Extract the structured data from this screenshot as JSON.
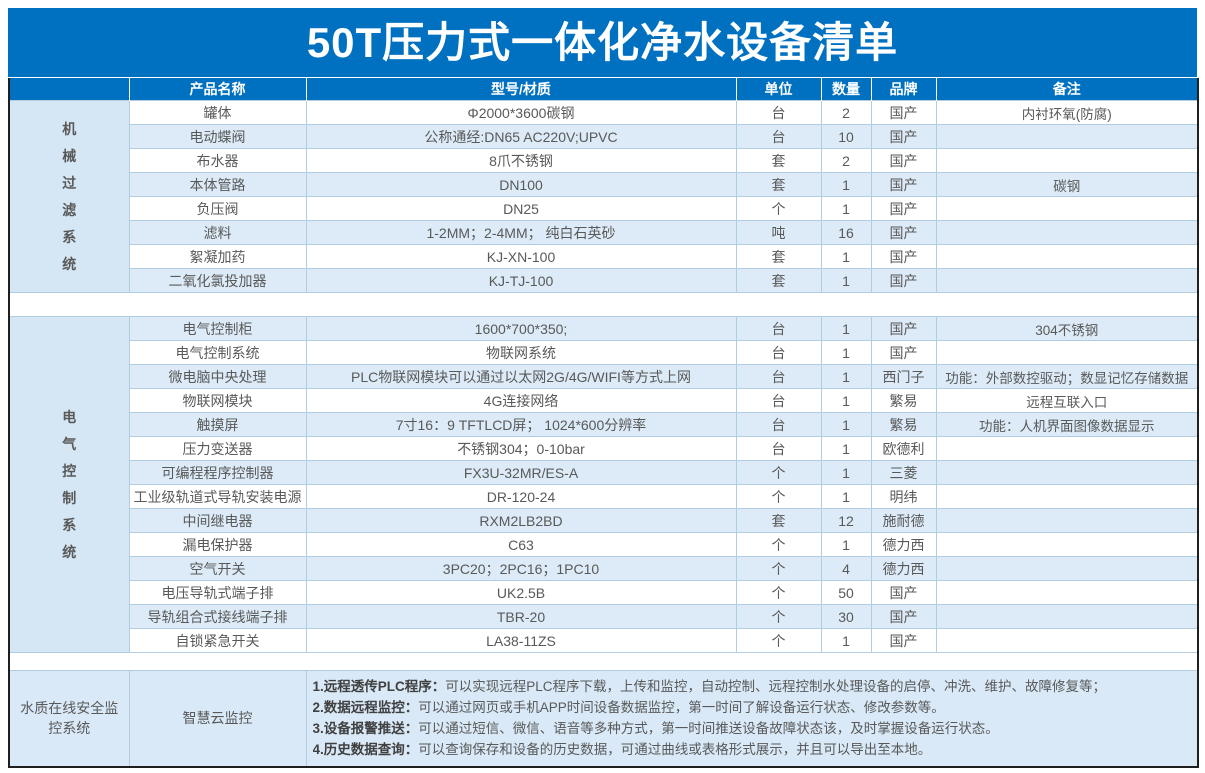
{
  "title": "50T压力式一体化净水设备清单",
  "colors": {
    "header_blue": "#0070C0",
    "row_alt_blue": "#DCEBF7",
    "category_bg": "#D5E6F4",
    "monitor_bg": "#D9E9F7",
    "text_gray": "#595959",
    "outer_border": "#1F1F1F"
  },
  "table": {
    "headers": [
      "产品名称",
      "型号/材质",
      "单位",
      "数量",
      "品牌",
      "备注"
    ],
    "sections": [
      {
        "category": "机械过滤系统",
        "rows": [
          {
            "name": "罐体",
            "model": "Φ2000*3600碳钢",
            "unit": "台",
            "qty": "2",
            "brand": "国产",
            "note": "内衬环氧(防腐)"
          },
          {
            "name": "电动蝶阀",
            "model": "公称通经:DN65 AC220V;UPVC",
            "unit": "台",
            "qty": "10",
            "brand": "国产",
            "note": ""
          },
          {
            "name": "布水器",
            "model": "8爪不锈钢",
            "unit": "套",
            "qty": "2",
            "brand": "国产",
            "note": ""
          },
          {
            "name": "本体管路",
            "model": "DN100",
            "unit": "套",
            "qty": "1",
            "brand": "国产",
            "note": "碳钢"
          },
          {
            "name": "负压阀",
            "model": "DN25",
            "unit": "个",
            "qty": "1",
            "brand": "国产",
            "note": ""
          },
          {
            "name": "滤料",
            "model": "1-2MM；2-4MM； 纯白石英砂",
            "unit": "吨",
            "qty": "16",
            "brand": "国产",
            "note": ""
          },
          {
            "name": "絮凝加药",
            "model": "KJ-XN-100",
            "unit": "套",
            "qty": "1",
            "brand": "国产",
            "note": ""
          },
          {
            "name": "二氧化氯投加器",
            "model": "KJ-TJ-100",
            "unit": "套",
            "qty": "1",
            "brand": "国产",
            "note": ""
          }
        ]
      },
      {
        "category": "电气控制系统",
        "rows": [
          {
            "name": "电气控制柜",
            "model": "1600*700*350;",
            "unit": "台",
            "qty": "1",
            "brand": "国产",
            "note": "304不锈钢"
          },
          {
            "name": "电气控制系统",
            "model": "物联网系统",
            "unit": "台",
            "qty": "1",
            "brand": "国产",
            "note": ""
          },
          {
            "name": "微电脑中央处理",
            "model": "PLC物联网模块可以通过以太网2G/4G/WIFI等方式上网",
            "unit": "台",
            "qty": "1",
            "brand": "西门子",
            "note": "功能：外部数控驱动；数显记忆存储数据"
          },
          {
            "name": "物联网模块",
            "model": "4G连接网络",
            "unit": "台",
            "qty": "1",
            "brand": "繁易",
            "note": "远程互联入口"
          },
          {
            "name": "触摸屏",
            "model": "7寸16：9 TFTLCD屏； 1024*600分辨率",
            "unit": "台",
            "qty": "1",
            "brand": "繁易",
            "note": "功能：人机界面图像数据显示"
          },
          {
            "name": "压力变送器",
            "model": "不锈钢304；0-10bar",
            "unit": "台",
            "qty": "1",
            "brand": "欧德利",
            "note": ""
          },
          {
            "name": "可编程程序控制器",
            "model": "FX3U-32MR/ES-A",
            "unit": "个",
            "qty": "1",
            "brand": "三菱",
            "note": ""
          },
          {
            "name": "工业级轨道式导轨安装电源",
            "model": "DR-120-24",
            "unit": "个",
            "qty": "1",
            "brand": "明纬",
            "note": ""
          },
          {
            "name": "中间继电器",
            "model": "RXM2LB2BD",
            "unit": "套",
            "qty": "12",
            "brand": "施耐德",
            "note": ""
          },
          {
            "name": "漏电保护器",
            "model": "C63",
            "unit": "个",
            "qty": "1",
            "brand": "德力西",
            "note": ""
          },
          {
            "name": "空气开关",
            "model": "3PC20；2PC16；1PC10",
            "unit": "个",
            "qty": "4",
            "brand": "德力西",
            "note": ""
          },
          {
            "name": "电压导轨式端子排",
            "model": "UK2.5B",
            "unit": "个",
            "qty": "50",
            "brand": "国产",
            "note": ""
          },
          {
            "name": "导轨组合式接线端子排",
            "model": "TBR-20",
            "unit": "个",
            "qty": "30",
            "brand": "国产",
            "note": ""
          },
          {
            "name": "自锁紧急开关",
            "model": "LA38-11ZS",
            "unit": "个",
            "qty": "1",
            "brand": "国产",
            "note": ""
          }
        ]
      }
    ],
    "monitor": {
      "category": "水质在线安全监控系统",
      "product": "智慧云监控",
      "features": [
        {
          "label": "1.远程透传PLC程序：",
          "text": "可以实现远程PLC程序下载，上传和监控，自动控制、远程控制水处理设备的启停、冲洗、维护、故障修复等；"
        },
        {
          "label": "2.数据远程监控：",
          "text": "可以通过网页或手机APP时间设备数据监控，第一时间了解设备运行状态、修改参数等。"
        },
        {
          "label": "3.设备报警推送：",
          "text": "可以通过短信、微信、语音等多种方式，第一时间推送设备故障状态该，及时掌握设备运行状态。"
        },
        {
          "label": "4.历史数据查询：",
          "text": "可以查询保存和设备的历史数据，可通过曲线或表格形式展示，并且可以导出至本地。"
        }
      ]
    }
  }
}
